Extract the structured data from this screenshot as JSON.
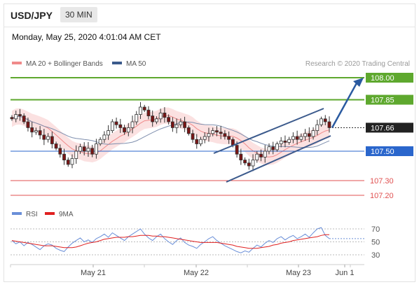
{
  "header": {
    "pair": "USD/JPY",
    "timeframe": "30 MIN",
    "datetime": "Monday, May 25, 2020 4:01:04 AM CET"
  },
  "chart_data": [
    {
      "type": "candlestick",
      "title": "USD/JPY",
      "credit": "Research © 2020 Trading Central",
      "legend": [
        {
          "name": "MA 20 + Bollinger Bands",
          "color": "#f08a8a"
        },
        {
          "name": "MA 50",
          "color": "#3b5a8c"
        }
      ],
      "x_ticks": [
        "May 21",
        "May 22",
        "May 23",
        "Jun 1"
      ],
      "ylim": [
        107.15,
        108.05
      ],
      "price_levels": [
        {
          "value": 108.0,
          "label": "108.00",
          "color": "#5ea82e"
        },
        {
          "value": 107.85,
          "label": "107.85",
          "color": "#5ea82e"
        },
        {
          "value": 107.66,
          "label": "107.66",
          "color": "#222222"
        },
        {
          "value": 107.5,
          "label": "107.50",
          "color": "#2a66cc"
        },
        {
          "value": 107.3,
          "label": "107.30",
          "color": "#e05050"
        },
        {
          "value": 107.2,
          "label": "107.20",
          "color": "#e05050"
        }
      ],
      "close_series": [
        107.72,
        107.75,
        107.74,
        107.7,
        107.66,
        107.63,
        107.64,
        107.61,
        107.58,
        107.6,
        107.55,
        107.52,
        107.48,
        107.44,
        107.41,
        107.45,
        107.5,
        107.53,
        107.5,
        107.52,
        107.48,
        107.55,
        107.58,
        107.61,
        107.64,
        107.7,
        107.68,
        107.66,
        107.63,
        107.66,
        107.7,
        107.75,
        107.8,
        107.78,
        107.74,
        107.7,
        107.72,
        107.76,
        107.73,
        107.7,
        107.66,
        107.68,
        107.7,
        107.66,
        107.62,
        107.58,
        107.55,
        107.58,
        107.6,
        107.62,
        107.64,
        107.63,
        107.62,
        107.6,
        107.58,
        107.54,
        107.48,
        107.44,
        107.42,
        107.4,
        107.44,
        107.48,
        107.46,
        107.5,
        107.53,
        107.51,
        107.55,
        107.57,
        107.56,
        107.58,
        107.6,
        107.58,
        107.6,
        107.62,
        107.6,
        107.64,
        107.68,
        107.72,
        107.7,
        107.66
      ],
      "rsi": {
        "legend": [
          {
            "name": "RSI",
            "color": "#6a8fd8"
          },
          {
            "name": "9MA",
            "color": "#e02020"
          }
        ],
        "levels": [
          70,
          50,
          30
        ],
        "ylim": [
          20,
          80
        ],
        "rsi_values": [
          52,
          47,
          50,
          44,
          49,
          46,
          42,
          38,
          44,
          47,
          45,
          40,
          37,
          35,
          42,
          48,
          52,
          56,
          50,
          53,
          49,
          55,
          58,
          62,
          57,
          64,
          60,
          56,
          52,
          58,
          62,
          66,
          70,
          62,
          56,
          52,
          58,
          62,
          55,
          50,
          46,
          52,
          56,
          49,
          45,
          43,
          40,
          46,
          50,
          55,
          58,
          52,
          48,
          44,
          41,
          38,
          35,
          33,
          36,
          34,
          40,
          45,
          42,
          48,
          52,
          49,
          55,
          58,
          53,
          57,
          60,
          55,
          58,
          62,
          57,
          64,
          70,
          72,
          60,
          55
        ],
        "ma_values": [
          52,
          51,
          50,
          49,
          48,
          47,
          46,
          45,
          44,
          44,
          44,
          43,
          42,
          41,
          41,
          41,
          42,
          44,
          46,
          48,
          49,
          50,
          52,
          54,
          55,
          56,
          57,
          57,
          57,
          58,
          58,
          59,
          60,
          60,
          60,
          59,
          59,
          58,
          58,
          57,
          56,
          55,
          54,
          53,
          52,
          51,
          50,
          49,
          49,
          49,
          49,
          49,
          48,
          47,
          46,
          45,
          43,
          42,
          41,
          40,
          40,
          40,
          41,
          42,
          43,
          45,
          46,
          48,
          49,
          50,
          52,
          53,
          54,
          55,
          56,
          57,
          58,
          60,
          61,
          61
        ]
      }
    }
  ]
}
